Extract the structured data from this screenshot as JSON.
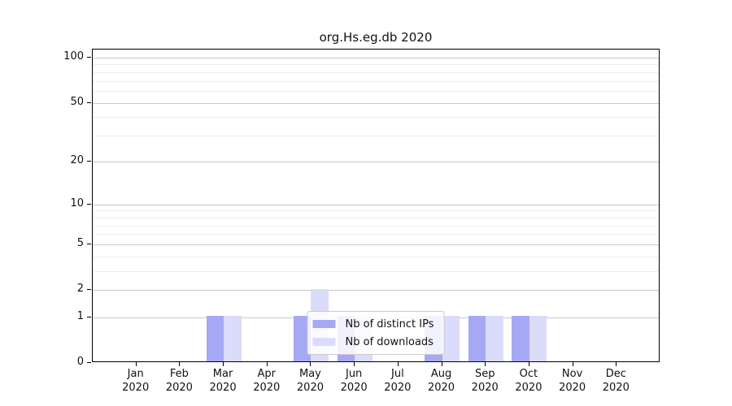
{
  "chart_data": {
    "type": "bar",
    "title": "org.Hs.eg.db 2020",
    "categories": [
      "Jan 2020",
      "Feb 2020",
      "Mar 2020",
      "Apr 2020",
      "May 2020",
      "Jun 2020",
      "Jul 2020",
      "Aug 2020",
      "Sep 2020",
      "Oct 2020",
      "Nov 2020",
      "Dec 2020"
    ],
    "series": [
      {
        "name": "Nb of distinct IPs",
        "color": "#a7a8f4",
        "values": [
          0,
          0,
          1,
          0,
          1,
          1,
          0,
          1,
          1,
          1,
          0,
          0
        ]
      },
      {
        "name": "Nb of downloads",
        "color": "#dbdbfa",
        "values": [
          0,
          0,
          1,
          0,
          2,
          1,
          0,
          1,
          1,
          1,
          0,
          0
        ]
      }
    ],
    "xlabel": "",
    "ylabel": "",
    "yscale": "log1p",
    "ylim": [
      0,
      113
    ],
    "y_major_ticks": [
      0,
      1,
      2,
      5,
      10,
      20,
      50,
      100
    ],
    "y_minor_gridlines": [
      3,
      4,
      6,
      7,
      8,
      9,
      30,
      40,
      60,
      70,
      80,
      90
    ],
    "grid": "horizontal",
    "legend_position": "inside-bottom-center"
  },
  "colors": {
    "grid_major": "#c9c9c9",
    "grid_minor": "#ededed",
    "spine": "#000000",
    "text": "#111111",
    "legend_border": "#cccccc",
    "legend_bg": "rgba(255,255,255,0.85)"
  }
}
